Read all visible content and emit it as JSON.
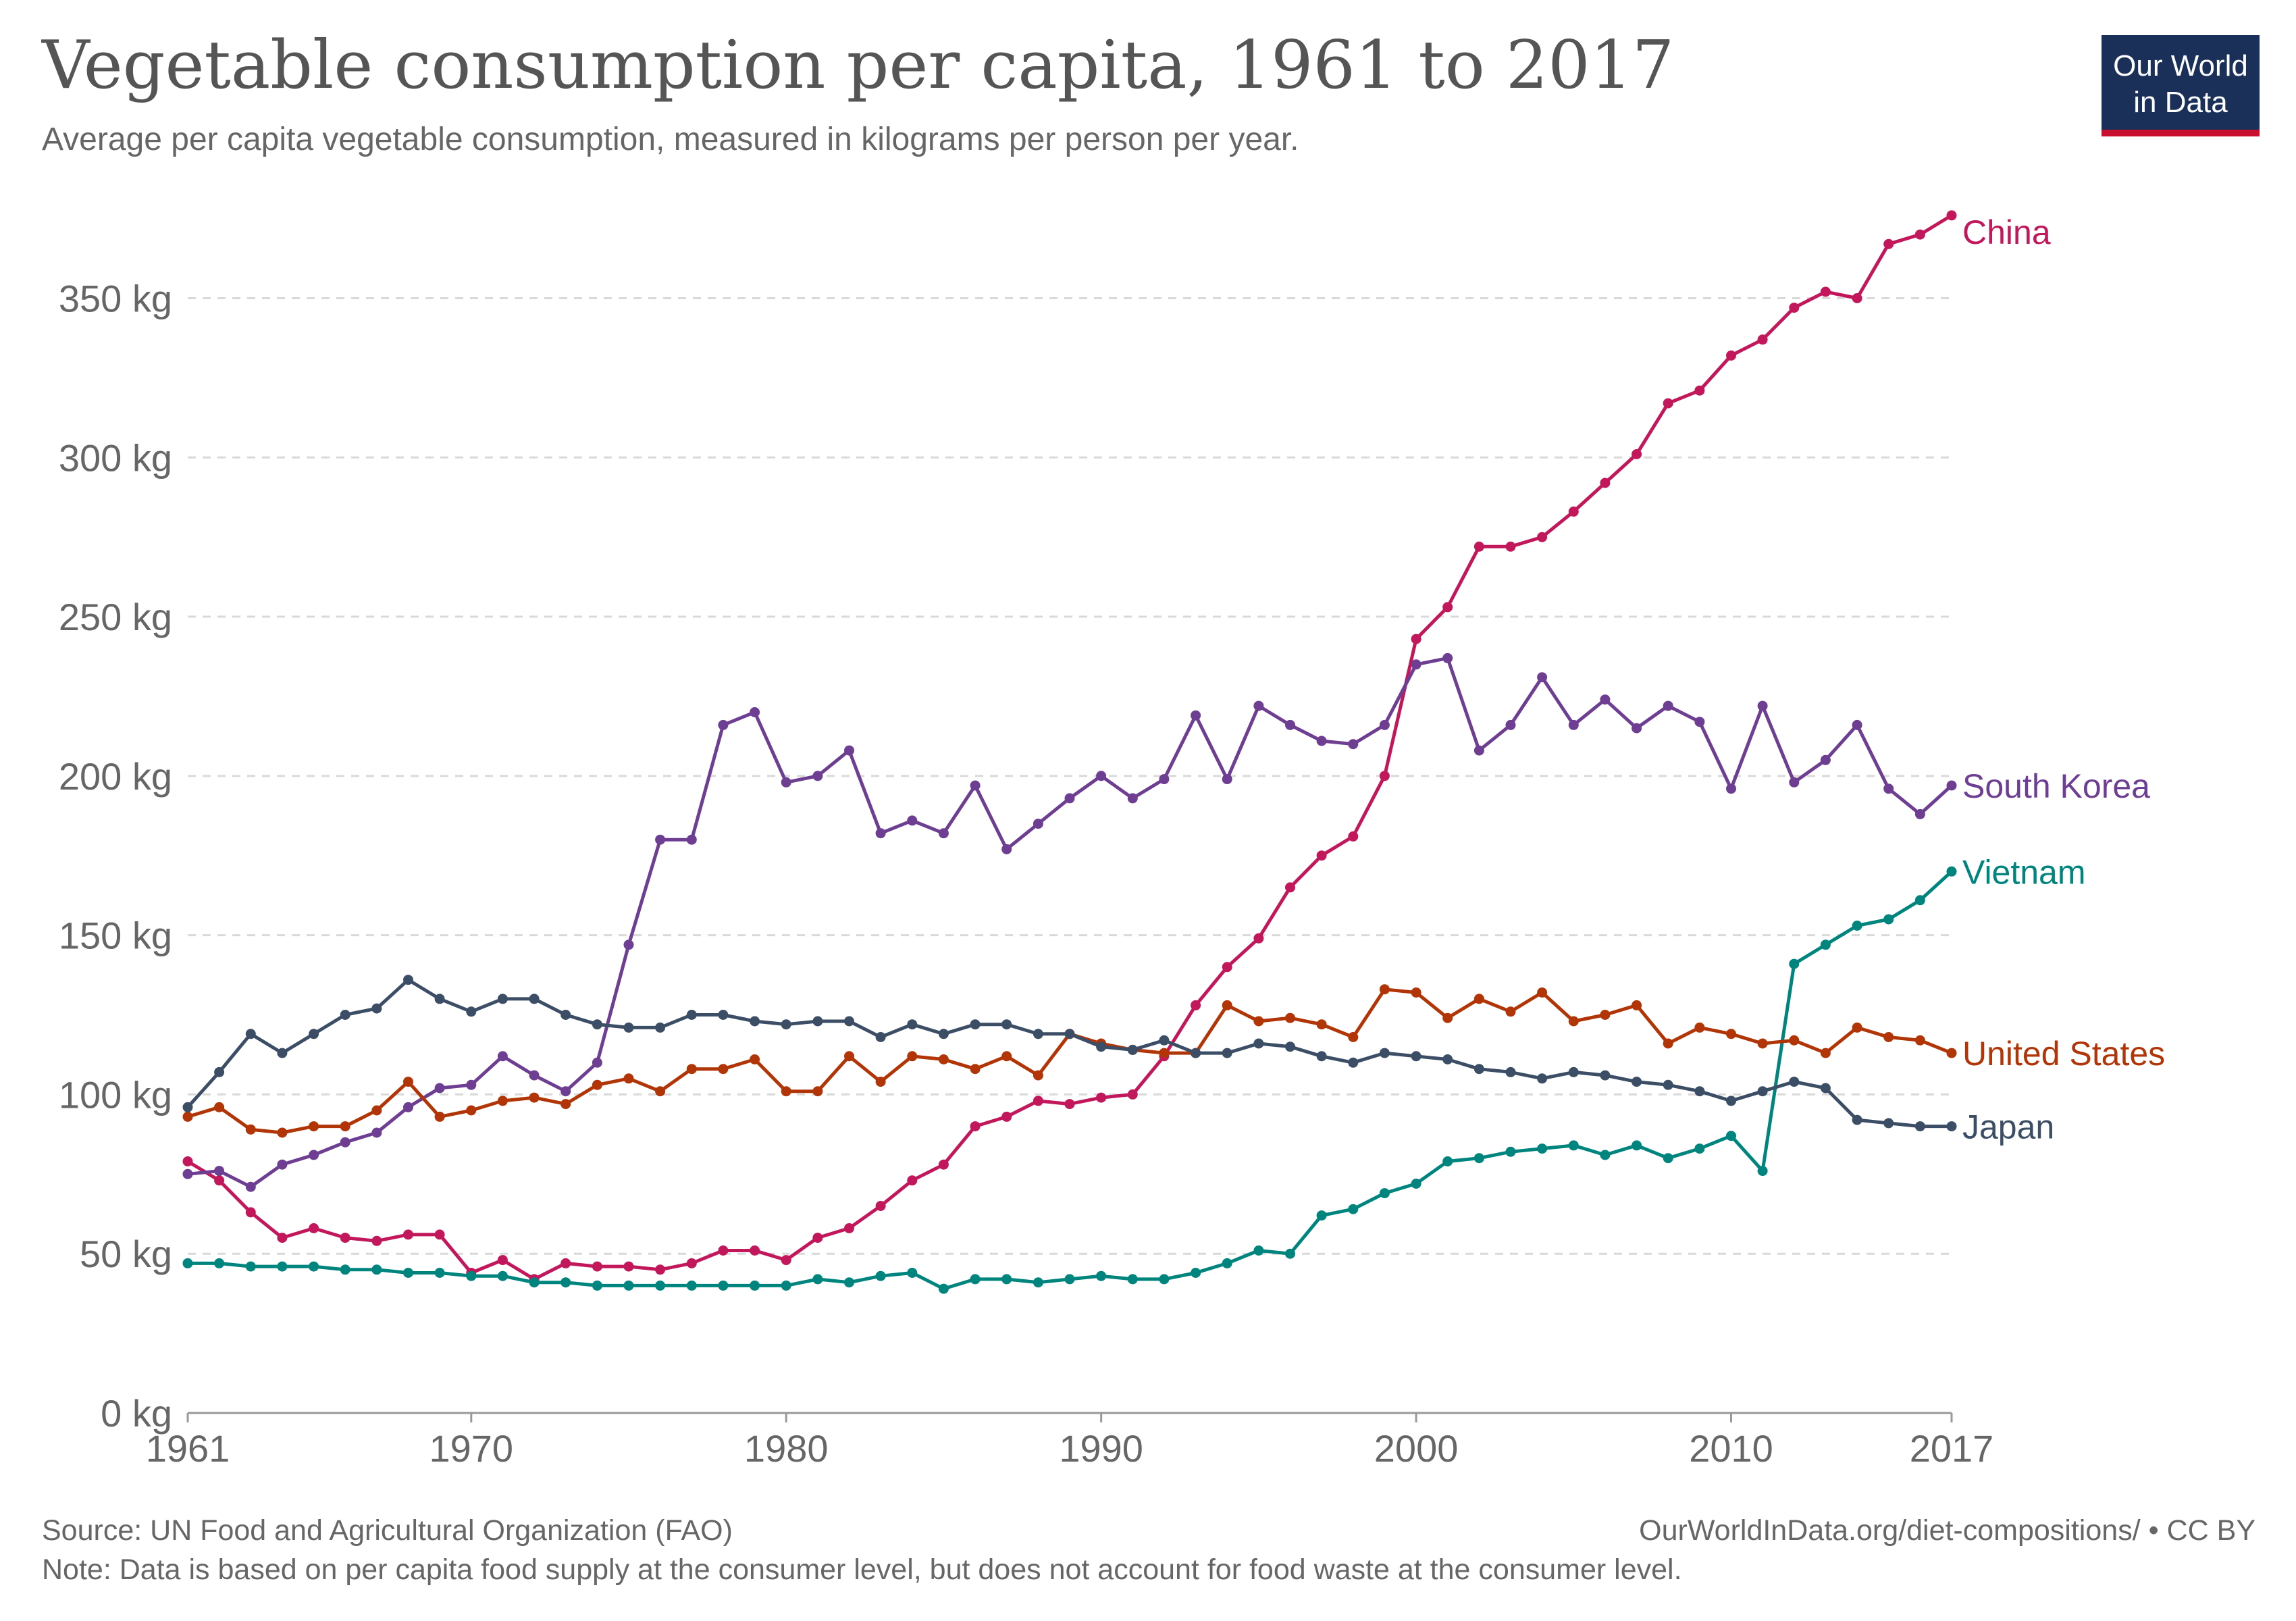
{
  "header": {
    "title": "Vegetable consumption per capita, 1961 to 2017",
    "subtitle": "Average per capita vegetable consumption, measured in kilograms per person per year."
  },
  "logo": {
    "line1": "Our World",
    "line2": "in Data",
    "bg": "#1a3059",
    "accent": "#c8102e"
  },
  "footer": {
    "source": "Source: UN Food and Agricultural Organization (FAO)",
    "url": "OurWorldInData.org/diet-compositions/ • CC BY",
    "note": "Note: Data is based on per capita food supply at the consumer level, but does not account for food waste at the consumer level."
  },
  "chart_data": {
    "type": "line",
    "x_ticks": [
      1961,
      1970,
      1980,
      1990,
      2000,
      2010,
      2017
    ],
    "y_ticks": [
      0,
      50,
      100,
      150,
      200,
      250,
      300,
      350
    ],
    "y_tick_labels": [
      "0 kg",
      "50 kg",
      "100 kg",
      "150 kg",
      "200 kg",
      "250 kg",
      "300 kg",
      "350 kg"
    ],
    "xlim": [
      1961,
      2017
    ],
    "ylim": [
      0,
      380
    ],
    "grid": "horizontal dashed",
    "legend": "inline labels at line ends",
    "series": [
      {
        "name": "China",
        "color": "#c2185b",
        "x_start": 1961,
        "values": [
          79,
          73,
          63,
          55,
          58,
          55,
          54,
          56,
          56,
          44,
          48,
          42,
          47,
          46,
          46,
          45,
          47,
          51,
          51,
          48,
          55,
          58,
          65,
          73,
          78,
          90,
          93,
          98,
          97,
          99,
          100,
          112,
          128,
          140,
          149,
          165,
          175,
          181,
          200,
          243,
          253,
          272,
          272,
          275,
          283,
          292,
          301,
          317,
          321,
          332,
          337,
          347,
          352,
          350,
          367,
          370,
          376
        ]
      },
      {
        "name": "South Korea",
        "color": "#6d3e91",
        "x_start": 1961,
        "values": [
          75,
          76,
          71,
          78,
          81,
          85,
          88,
          96,
          102,
          103,
          112,
          106,
          101,
          110,
          147,
          180,
          180,
          216,
          220,
          198,
          200,
          208,
          182,
          186,
          182,
          197,
          177,
          185,
          193,
          200,
          193,
          199,
          219,
          199,
          222,
          216,
          211,
          210,
          216,
          235,
          237,
          208,
          216,
          231,
          216,
          224,
          215,
          222,
          217,
          196,
          222,
          198,
          205,
          216,
          196,
          188,
          197
        ]
      },
      {
        "name": "Vietnam",
        "color": "#00847e",
        "x_start": 1961,
        "values": [
          47,
          47,
          46,
          46,
          46,
          45,
          45,
          44,
          44,
          43,
          43,
          41,
          41,
          40,
          40,
          40,
          40,
          40,
          40,
          40,
          42,
          41,
          43,
          44,
          39,
          42,
          42,
          41,
          42,
          43,
          42,
          42,
          44,
          47,
          51,
          50,
          62,
          64,
          69,
          72,
          79,
          80,
          82,
          83,
          84,
          81,
          84,
          80,
          83,
          87,
          76,
          141,
          147,
          153,
          155,
          161,
          170
        ]
      },
      {
        "name": "United States",
        "color": "#b13507",
        "x_start": 1961,
        "values": [
          93,
          96,
          89,
          88,
          90,
          90,
          95,
          104,
          93,
          95,
          98,
          99,
          97,
          103,
          105,
          101,
          108,
          108,
          111,
          101,
          101,
          112,
          104,
          112,
          111,
          108,
          112,
          106,
          119,
          116,
          114,
          113,
          113,
          128,
          123,
          124,
          122,
          118,
          133,
          132,
          124,
          130,
          126,
          132,
          123,
          125,
          128,
          116,
          121,
          119,
          116,
          117,
          113,
          121,
          118,
          117,
          113
        ]
      },
      {
        "name": "Japan",
        "color": "#3c4e66",
        "x_start": 1961,
        "values": [
          96,
          107,
          119,
          113,
          119,
          125,
          127,
          136,
          130,
          126,
          130,
          130,
          125,
          122,
          121,
          121,
          125,
          125,
          123,
          122,
          123,
          123,
          118,
          122,
          119,
          122,
          122,
          119,
          119,
          115,
          114,
          117,
          113,
          113,
          116,
          115,
          112,
          110,
          113,
          112,
          111,
          108,
          107,
          105,
          107,
          106,
          104,
          103,
          101,
          98,
          101,
          104,
          102,
          92,
          91,
          90,
          90
        ]
      }
    ]
  }
}
